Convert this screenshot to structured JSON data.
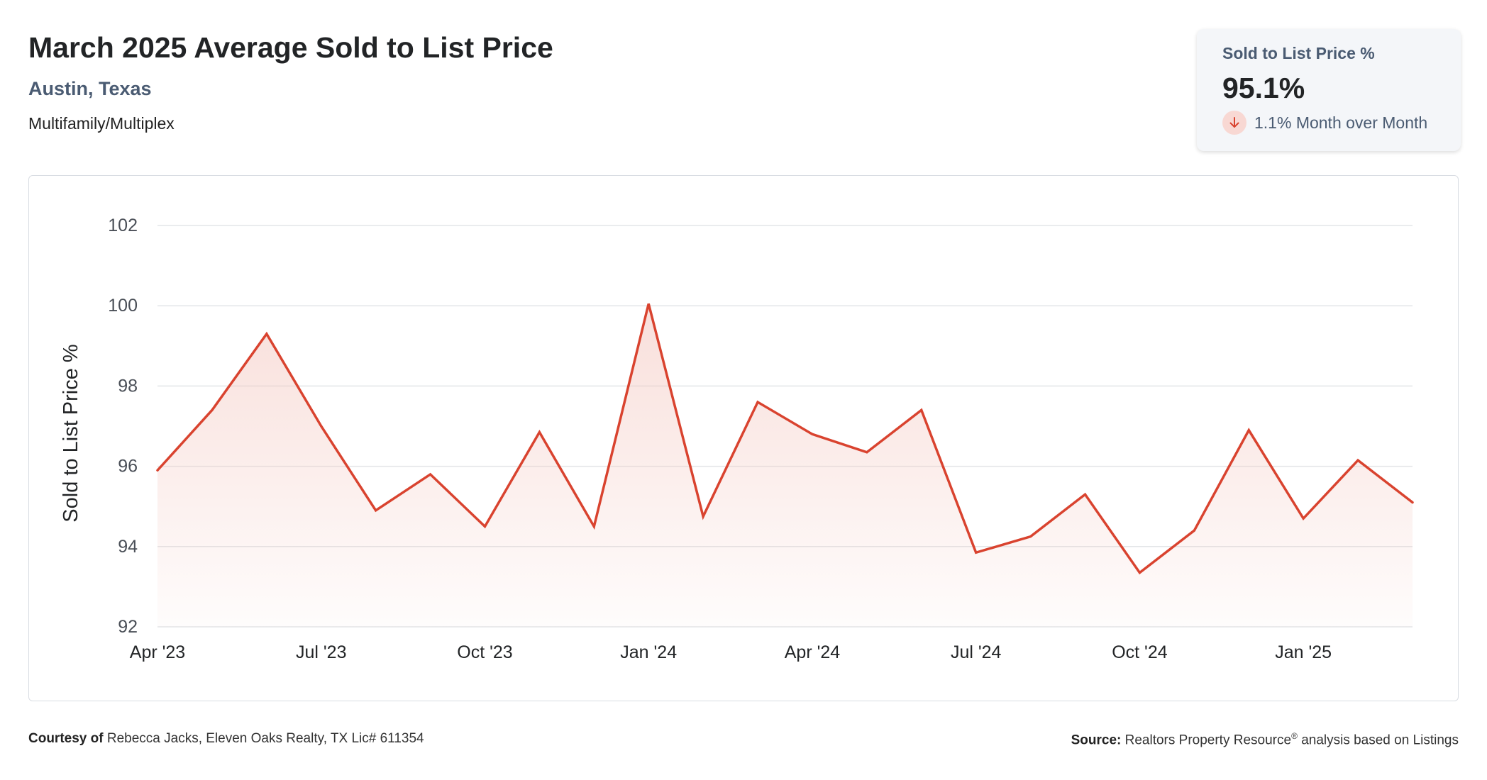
{
  "header": {
    "title": "March 2025 Average Sold to List Price",
    "location": "Austin, Texas",
    "property_type": "Multifamily/Multiplex"
  },
  "stat_card": {
    "label": "Sold to List Price %",
    "value": "95.1%",
    "change": "1.1% Month over Month",
    "direction_icon": "arrow-down-icon",
    "direction_color": "#d9432f"
  },
  "colors": {
    "line": "#d9432f",
    "area_top": "#f3c5bd",
    "grid": "#e3e5e8",
    "text_muted": "#4a5b72"
  },
  "chart_data": {
    "type": "area",
    "ylabel": "Sold to List Price %",
    "ylim": [
      92,
      102
    ],
    "yticks": [
      92,
      94,
      96,
      98,
      100,
      102
    ],
    "x": [
      "2023-04",
      "2023-05",
      "2023-06",
      "2023-07",
      "2023-08",
      "2023-09",
      "2023-10",
      "2023-11",
      "2023-12",
      "2024-01",
      "2024-02",
      "2024-03",
      "2024-04",
      "2024-05",
      "2024-06",
      "2024-07",
      "2024-08",
      "2024-09",
      "2024-10",
      "2024-11",
      "2024-12",
      "2025-01",
      "2025-02",
      "2025-03"
    ],
    "xtick_labels": [
      "Apr '23",
      "Jul '23",
      "Oct '23",
      "Jan '24",
      "Apr '24",
      "Jul '24",
      "Oct '24",
      "Jan '25"
    ],
    "xtick_positions": [
      "2023-04",
      "2023-07",
      "2023-10",
      "2024-01",
      "2024-04",
      "2024-07",
      "2024-10",
      "2025-01"
    ],
    "series": [
      {
        "values": [
          95.9,
          97.4,
          99.3,
          97.0,
          94.9,
          95.8,
          94.5,
          96.85,
          94.5,
          100.05,
          94.75,
          97.6,
          96.8,
          96.35,
          97.4,
          93.85,
          94.25,
          95.3,
          93.35,
          94.4,
          96.9,
          94.7,
          96.15,
          95.1
        ]
      }
    ],
    "grid": true
  },
  "footer": {
    "courtesy_label": "Courtesy of",
    "courtesy_text": "Rebecca Jacks, Eleven Oaks Realty, TX Lic# 611354",
    "source_label": "Source:",
    "source_text": "Realtors Property Resource",
    "source_mark": "®",
    "source_suffix": "analysis based on Listings"
  }
}
